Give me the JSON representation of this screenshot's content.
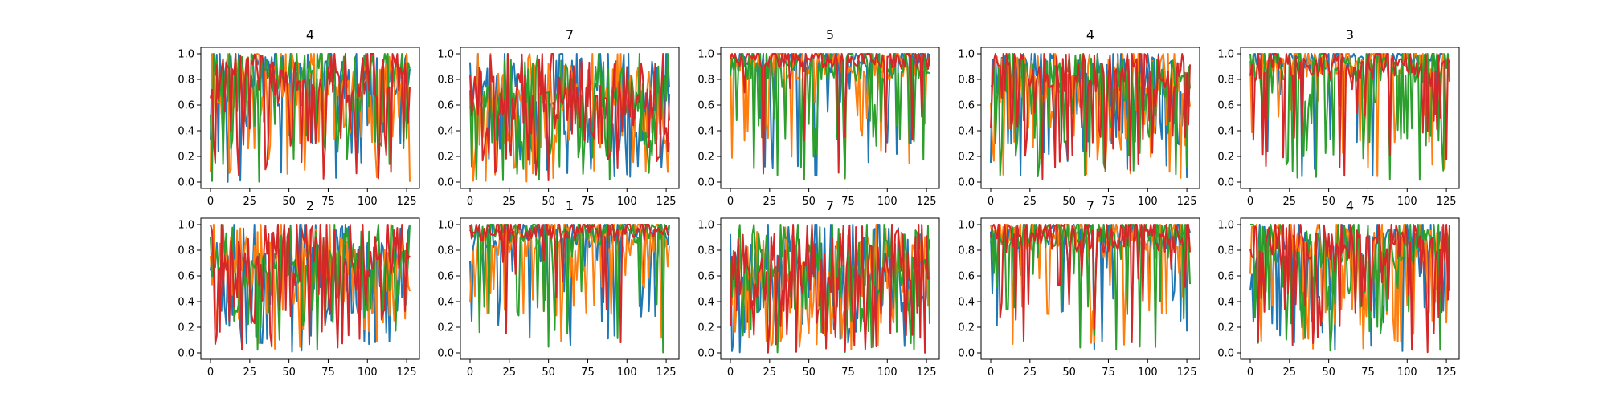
{
  "chart_data": [
    {
      "type": "line",
      "title": "4",
      "xlim": [
        0,
        127
      ],
      "ylim": [
        0,
        1
      ],
      "xticks": [
        "0",
        "25",
        "50",
        "75",
        "100",
        "125"
      ],
      "yticks": [
        "0.0",
        "0.2",
        "0.4",
        "0.6",
        "0.8",
        "1.0"
      ],
      "series": [
        {
          "color": "#1f77b4",
          "seed": 11,
          "base": 0.7,
          "deep": 0.3
        },
        {
          "color": "#ff7f0e",
          "seed": 12,
          "base": 0.65,
          "deep": 0.35
        },
        {
          "color": "#2ca02c",
          "seed": 13,
          "base": 0.72,
          "deep": 0.35
        },
        {
          "color": "#d62728",
          "seed": 14,
          "base": 0.66,
          "deep": 0.3
        }
      ]
    },
    {
      "type": "line",
      "title": "7",
      "xlim": [
        0,
        127
      ],
      "ylim": [
        0,
        1
      ],
      "xticks": [
        "0",
        "25",
        "50",
        "75",
        "100",
        "125"
      ],
      "yticks": [
        "0.0",
        "0.2",
        "0.4",
        "0.6",
        "0.8",
        "1.0"
      ],
      "series": [
        {
          "color": "#1f77b4",
          "seed": 21,
          "base": 0.55,
          "deep": 0.55
        },
        {
          "color": "#ff7f0e",
          "seed": 22,
          "base": 0.55,
          "deep": 0.55
        },
        {
          "color": "#2ca02c",
          "seed": 23,
          "base": 0.55,
          "deep": 0.5
        },
        {
          "color": "#d62728",
          "seed": 24,
          "base": 0.5,
          "deep": 0.55
        }
      ]
    },
    {
      "type": "line",
      "title": "5",
      "xlim": [
        0,
        127
      ],
      "ylim": [
        0,
        1
      ],
      "xticks": [
        "0",
        "25",
        "50",
        "75",
        "100",
        "125"
      ],
      "yticks": [
        "0.0",
        "0.2",
        "0.4",
        "0.6",
        "0.8",
        "1.0"
      ],
      "series": [
        {
          "color": "#1f77b4",
          "seed": 31,
          "base": 0.85,
          "deep": 0.1
        },
        {
          "color": "#ff7f0e",
          "seed": 32,
          "base": 0.8,
          "deep": 0.15
        },
        {
          "color": "#2ca02c",
          "seed": 33,
          "base": 0.78,
          "deep": 0.2
        },
        {
          "color": "#d62728",
          "seed": 34,
          "base": 0.88,
          "deep": 0.08
        }
      ]
    },
    {
      "type": "line",
      "title": "4",
      "xlim": [
        0,
        127
      ],
      "ylim": [
        0,
        1
      ],
      "xticks": [
        "0",
        "25",
        "50",
        "75",
        "100",
        "125"
      ],
      "yticks": [
        "0.0",
        "0.2",
        "0.4",
        "0.6",
        "0.8",
        "1.0"
      ],
      "series": [
        {
          "color": "#1f77b4",
          "seed": 41,
          "base": 0.7,
          "deep": 0.3
        },
        {
          "color": "#ff7f0e",
          "seed": 42,
          "base": 0.65,
          "deep": 0.35
        },
        {
          "color": "#2ca02c",
          "seed": 43,
          "base": 0.68,
          "deep": 0.35
        },
        {
          "color": "#d62728",
          "seed": 44,
          "base": 0.7,
          "deep": 0.3
        }
      ]
    },
    {
      "type": "line",
      "title": "3",
      "xlim": [
        0,
        127
      ],
      "ylim": [
        0,
        1
      ],
      "xticks": [
        "0",
        "25",
        "50",
        "75",
        "100",
        "125"
      ],
      "yticks": [
        "0.0",
        "0.2",
        "0.4",
        "0.6",
        "0.8",
        "1.0"
      ],
      "series": [
        {
          "color": "#1f77b4",
          "seed": 51,
          "base": 0.88,
          "deep": 0.1
        },
        {
          "color": "#ff7f0e",
          "seed": 52,
          "base": 0.82,
          "deep": 0.15
        },
        {
          "color": "#2ca02c",
          "seed": 53,
          "base": 0.78,
          "deep": 0.25
        },
        {
          "color": "#d62728",
          "seed": 54,
          "base": 0.8,
          "deep": 0.15
        }
      ]
    },
    {
      "type": "line",
      "title": "2",
      "xlim": [
        0,
        127
      ],
      "ylim": [
        0,
        1
      ],
      "xticks": [
        "0",
        "25",
        "50",
        "75",
        "100",
        "125"
      ],
      "yticks": [
        "0.0",
        "0.2",
        "0.4",
        "0.6",
        "0.8",
        "1.0"
      ],
      "series": [
        {
          "color": "#1f77b4",
          "seed": 61,
          "base": 0.6,
          "deep": 0.45
        },
        {
          "color": "#ff7f0e",
          "seed": 62,
          "base": 0.58,
          "deep": 0.45
        },
        {
          "color": "#2ca02c",
          "seed": 63,
          "base": 0.62,
          "deep": 0.45
        },
        {
          "color": "#d62728",
          "seed": 64,
          "base": 0.58,
          "deep": 0.45
        }
      ]
    },
    {
      "type": "line",
      "title": "1",
      "xlim": [
        0,
        127
      ],
      "ylim": [
        0,
        1
      ],
      "xticks": [
        "0",
        "25",
        "50",
        "75",
        "100",
        "125"
      ],
      "yticks": [
        "0.0",
        "0.2",
        "0.4",
        "0.6",
        "0.8",
        "1.0"
      ],
      "series": [
        {
          "color": "#1f77b4",
          "seed": 71,
          "base": 0.82,
          "deep": 0.15
        },
        {
          "color": "#ff7f0e",
          "seed": 72,
          "base": 0.75,
          "deep": 0.25
        },
        {
          "color": "#2ca02c",
          "seed": 73,
          "base": 0.85,
          "deep": 0.12
        },
        {
          "color": "#d62728",
          "seed": 74,
          "base": 0.87,
          "deep": 0.08
        }
      ]
    },
    {
      "type": "line",
      "title": "7",
      "xlim": [
        0,
        127
      ],
      "ylim": [
        0,
        1
      ],
      "xticks": [
        "0",
        "25",
        "50",
        "75",
        "100",
        "125"
      ],
      "yticks": [
        "0.0",
        "0.2",
        "0.4",
        "0.6",
        "0.8",
        "1.0"
      ],
      "series": [
        {
          "color": "#1f77b4",
          "seed": 81,
          "base": 0.55,
          "deep": 0.55
        },
        {
          "color": "#ff7f0e",
          "seed": 82,
          "base": 0.55,
          "deep": 0.55
        },
        {
          "color": "#2ca02c",
          "seed": 83,
          "base": 0.55,
          "deep": 0.55
        },
        {
          "color": "#d62728",
          "seed": 84,
          "base": 0.52,
          "deep": 0.55
        }
      ]
    },
    {
      "type": "line",
      "title": "7",
      "xlim": [
        0,
        127
      ],
      "ylim": [
        0,
        1
      ],
      "xticks": [
        "0",
        "25",
        "50",
        "75",
        "100",
        "125"
      ],
      "yticks": [
        "0.0",
        "0.2",
        "0.4",
        "0.6",
        "0.8",
        "1.0"
      ],
      "series": [
        {
          "color": "#1f77b4",
          "seed": 91,
          "base": 0.8,
          "deep": 0.15
        },
        {
          "color": "#ff7f0e",
          "seed": 92,
          "base": 0.8,
          "deep": 0.15
        },
        {
          "color": "#2ca02c",
          "seed": 93,
          "base": 0.82,
          "deep": 0.15
        },
        {
          "color": "#d62728",
          "seed": 94,
          "base": 0.78,
          "deep": 0.15
        }
      ]
    },
    {
      "type": "line",
      "title": "4",
      "xlim": [
        0,
        127
      ],
      "ylim": [
        0,
        1
      ],
      "xticks": [
        "0",
        "25",
        "50",
        "75",
        "100",
        "125"
      ],
      "yticks": [
        "0.0",
        "0.2",
        "0.4",
        "0.6",
        "0.8",
        "1.0"
      ],
      "series": [
        {
          "color": "#1f77b4",
          "seed": 101,
          "base": 0.72,
          "deep": 0.3
        },
        {
          "color": "#ff7f0e",
          "seed": 102,
          "base": 0.68,
          "deep": 0.35
        },
        {
          "color": "#2ca02c",
          "seed": 103,
          "base": 0.7,
          "deep": 0.35
        },
        {
          "color": "#d62728",
          "seed": 104,
          "base": 0.72,
          "deep": 0.3
        }
      ]
    }
  ]
}
